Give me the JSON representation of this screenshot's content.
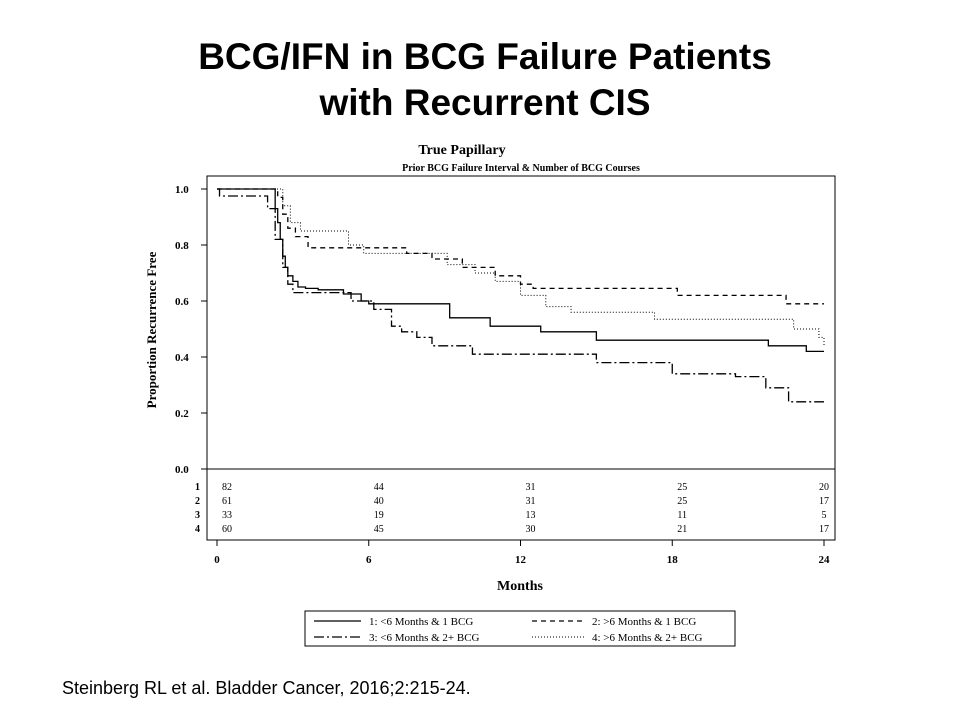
{
  "slide": {
    "title_line1": "BCG/IFN in BCG Failure Patients",
    "title_line2": "with Recurrent CIS",
    "citation": "Steinberg RL et al. Bladder Cancer, 2016;2:215-24."
  },
  "chart_data": {
    "type": "line",
    "subtype": "kaplan-meier-step",
    "title": "True Papillary",
    "subtitle": "Prior BCG Failure Interval & Number of BCG Courses",
    "xlabel": "Months",
    "ylabel": "Proportion Recurrence Free",
    "xlim": [
      0,
      24
    ],
    "ylim": [
      0,
      1
    ],
    "x_ticks": [
      0,
      6,
      12,
      18,
      24
    ],
    "y_ticks": [
      0.0,
      0.2,
      0.4,
      0.6,
      0.8,
      1.0
    ],
    "y_tick_labels": [
      "0.0",
      "0.2",
      "0.4",
      "0.6",
      "0.8",
      "1.0"
    ],
    "series": [
      {
        "id": "1",
        "name": "1: <6 Months & 1 BCG",
        "dash": "solid",
        "x": [
          0,
          2.2,
          2.3,
          2.4,
          2.5,
          2.6,
          2.7,
          2.8,
          3.0,
          3.2,
          3.5,
          4.0,
          5.0,
          5.7,
          6.0,
          9.2,
          10.8,
          12.8,
          15.0,
          21.8,
          23.3,
          24.0
        ],
        "y": [
          1.0,
          1.0,
          0.93,
          0.88,
          0.82,
          0.76,
          0.72,
          0.69,
          0.67,
          0.65,
          0.645,
          0.64,
          0.625,
          0.6,
          0.59,
          0.54,
          0.51,
          0.49,
          0.46,
          0.44,
          0.42,
          0.42
        ]
      },
      {
        "id": "2",
        "name": "2: >6 Months & 1 BCG",
        "dash": "dashed",
        "x": [
          0,
          2.2,
          2.4,
          2.6,
          2.8,
          3.1,
          3.6,
          7.5,
          8.5,
          9.7,
          11.0,
          12.0,
          12.5,
          15.0,
          18.2,
          22.5,
          24.0
        ],
        "y": [
          1.0,
          1.0,
          0.97,
          0.91,
          0.86,
          0.83,
          0.79,
          0.77,
          0.75,
          0.72,
          0.69,
          0.66,
          0.645,
          0.645,
          0.62,
          0.59,
          0.59
        ]
      },
      {
        "id": "3",
        "name": "3: <6 Months & 2+ BCG",
        "dash": "dashdot",
        "x": [
          0,
          0.1,
          1.7,
          2.0,
          2.3,
          2.6,
          2.8,
          3.0,
          5.3,
          6.2,
          6.9,
          7.3,
          7.9,
          8.5,
          10.1,
          15.0,
          17.0,
          18.0,
          20.5,
          21.7,
          22.6,
          24.0
        ],
        "y": [
          1.0,
          0.975,
          0.975,
          0.93,
          0.82,
          0.72,
          0.66,
          0.63,
          0.6,
          0.57,
          0.51,
          0.49,
          0.47,
          0.44,
          0.41,
          0.38,
          0.38,
          0.34,
          0.33,
          0.29,
          0.24,
          0.24
        ]
      },
      {
        "id": "4",
        "name": "4: >6 Months & 2+ BCG",
        "dash": "dotted",
        "x": [
          0,
          2.3,
          2.6,
          2.9,
          3.3,
          5.2,
          5.8,
          8.0,
          9.1,
          10.2,
          11.0,
          12.0,
          13.0,
          14.0,
          17.3,
          22.8,
          23.8,
          24.0
        ],
        "y": [
          1.0,
          1.0,
          0.94,
          0.88,
          0.85,
          0.8,
          0.77,
          0.77,
          0.73,
          0.7,
          0.67,
          0.62,
          0.58,
          0.56,
          0.535,
          0.5,
          0.47,
          0.44
        ]
      }
    ],
    "risk_table": {
      "times": [
        0,
        6,
        12,
        18,
        24
      ],
      "rows": [
        {
          "label": "1",
          "values": [
            "82",
            "44",
            "31",
            "25",
            "20"
          ]
        },
        {
          "label": "2",
          "values": [
            "61",
            "40",
            "31",
            "25",
            "17"
          ]
        },
        {
          "label": "3",
          "values": [
            "33",
            "19",
            "13",
            "11",
            "5"
          ]
        },
        {
          "label": "4",
          "values": [
            "60",
            "45",
            "30",
            "21",
            "17"
          ]
        }
      ]
    },
    "legend": {
      "placement": "bottom",
      "entries": [
        "1: <6 Months & 1 BCG",
        "2: >6 Months & 1 BCG",
        "3: <6 Months & 2+ BCG",
        "4: >6 Months & 2+ BCG"
      ]
    }
  }
}
